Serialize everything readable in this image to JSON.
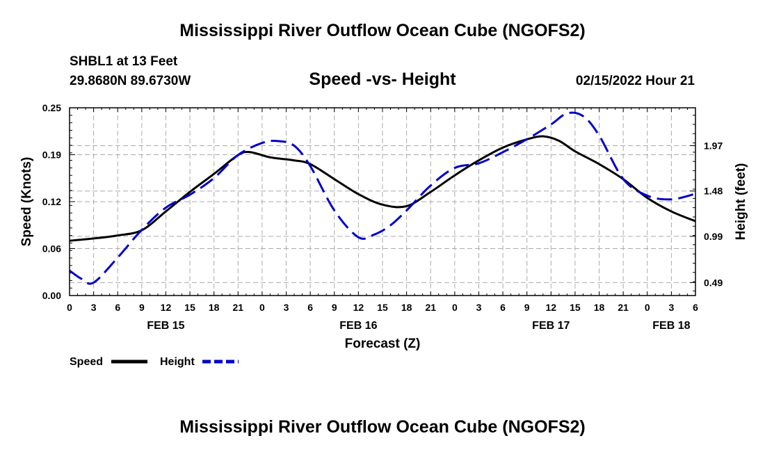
{
  "header": {
    "title": "Mississippi River Outflow Ocean Cube (NGOFS2)",
    "station": "SHBL1 at 13 Feet",
    "coords": "29.8680N  89.6730W",
    "subtitle": "Speed -vs- Height",
    "datetime": "02/15/2022 Hour 21"
  },
  "footer": {
    "title": "Mississippi River Outflow Ocean Cube (NGOFS2)"
  },
  "colors": {
    "speed": "#000000",
    "height": "#0000cc",
    "grid": "#aaaaaa"
  },
  "chart_data": {
    "type": "line",
    "title": "Speed -vs- Height",
    "xlabel": "Forecast (Z)",
    "ylabel": "Speed (Knots)",
    "y2label": "Height (feet)",
    "xlim": [
      0,
      78
    ],
    "ylim": [
      0,
      0.25
    ],
    "y2lim": [
      0.35,
      2.38
    ],
    "x_tick_labels": [
      "0",
      "3",
      "6",
      "9",
      "12",
      "15",
      "18",
      "21",
      "0",
      "3",
      "6",
      "9",
      "12",
      "15",
      "18",
      "21",
      "0",
      "3",
      "6",
      "9",
      "12",
      "15",
      "18",
      "21",
      "0",
      "3",
      "6"
    ],
    "date_labels": [
      {
        "x": 12,
        "label": "FEB 15"
      },
      {
        "x": 36,
        "label": "FEB 16"
      },
      {
        "x": 60,
        "label": "FEB 17"
      },
      {
        "x": 75,
        "label": "FEB 18"
      }
    ],
    "y_ticks": [
      {
        "value": 0,
        "label": "0.00"
      },
      {
        "value": 0.0625,
        "label": "0.06"
      },
      {
        "value": 0.125,
        "label": "0.12"
      },
      {
        "value": 0.1875,
        "label": "0.19"
      },
      {
        "value": 0.25,
        "label": "0.25"
      }
    ],
    "y2_ticks": [
      {
        "value": 0.49,
        "label": "0.49"
      },
      {
        "value": 0.99,
        "label": "0.99"
      },
      {
        "value": 1.48,
        "label": "1.48"
      },
      {
        "value": 1.97,
        "label": "1.97"
      }
    ],
    "legend": [
      {
        "name": "Speed",
        "style": "solid"
      },
      {
        "name": "Height",
        "style": "dashed"
      }
    ],
    "series": [
      {
        "name": "Speed",
        "axis": "left",
        "x": [
          0,
          3,
          6,
          9,
          12,
          15,
          18,
          21,
          22.5,
          25,
          28,
          30,
          33,
          36,
          39,
          42,
          45,
          48,
          51,
          54,
          57,
          59,
          61,
          63,
          66,
          69,
          72,
          75,
          78
        ],
        "values": [
          0.073,
          0.076,
          0.08,
          0.087,
          0.112,
          0.138,
          0.162,
          0.187,
          0.191,
          0.184,
          0.18,
          0.175,
          0.155,
          0.135,
          0.121,
          0.119,
          0.138,
          0.16,
          0.18,
          0.197,
          0.208,
          0.212,
          0.206,
          0.192,
          0.175,
          0.155,
          0.13,
          0.112,
          0.099
        ]
      },
      {
        "name": "Height",
        "axis": "right",
        "x": [
          0,
          1.5,
          3,
          6,
          9,
          12,
          15,
          18,
          21,
          24,
          26,
          28,
          30,
          33,
          36,
          38,
          40,
          42,
          45,
          48,
          51,
          54,
          57,
          60,
          62,
          64,
          66,
          69,
          72,
          75,
          78
        ],
        "values": [
          0.62,
          0.53,
          0.49,
          0.76,
          1.06,
          1.3,
          1.44,
          1.62,
          1.87,
          2.0,
          2.02,
          1.97,
          1.75,
          1.27,
          0.98,
          1.01,
          1.11,
          1.27,
          1.54,
          1.73,
          1.78,
          1.9,
          2.04,
          2.2,
          2.32,
          2.29,
          2.08,
          1.61,
          1.43,
          1.39,
          1.45
        ]
      }
    ]
  }
}
